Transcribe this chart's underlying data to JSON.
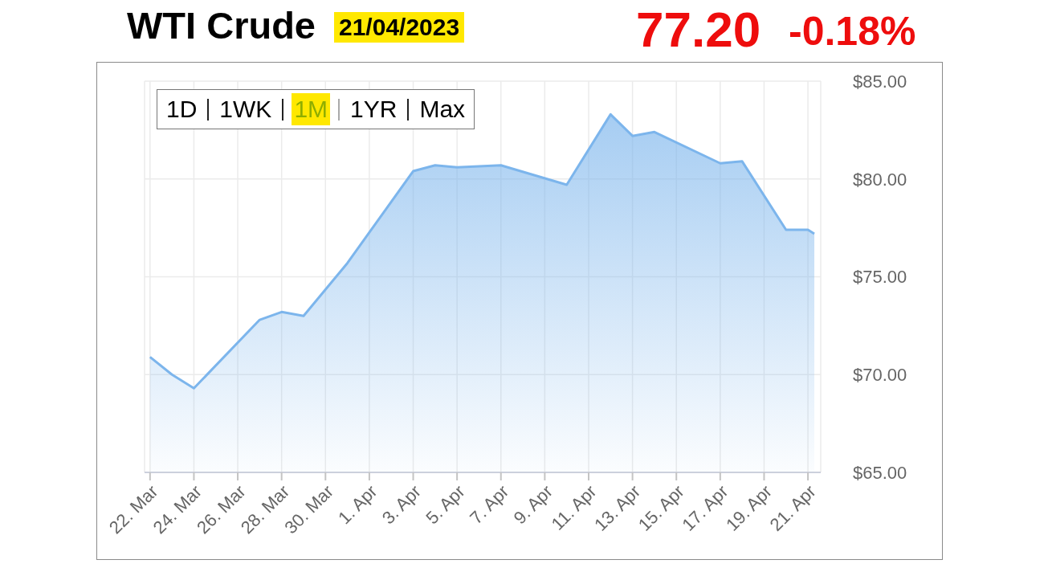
{
  "chart_data": {
    "type": "area",
    "title": "WTI Crude",
    "subtitle": "21/04/2023",
    "annotations": [
      "77.20",
      "-0.18%",
      "1D",
      "1WK",
      "1M",
      "1YR",
      "Max"
    ],
    "x": [
      "2023-03-22",
      "2023-03-23",
      "2023-03-24",
      "2023-03-27",
      "2023-03-28",
      "2023-03-29",
      "2023-03-31",
      "2023-04-03",
      "2023-04-04",
      "2023-04-05",
      "2023-04-07",
      "2023-04-10",
      "2023-04-12",
      "2023-04-13",
      "2023-04-14",
      "2023-04-17",
      "2023-04-18",
      "2023-04-20",
      "2023-04-21",
      "2023-04-21T07:00"
    ],
    "values": [
      70.9,
      70.0,
      69.3,
      72.8,
      73.2,
      73.0,
      75.7,
      80.4,
      80.7,
      80.6,
      80.7,
      79.7,
      83.3,
      82.2,
      82.4,
      80.8,
      80.9,
      77.4,
      77.4,
      77.2
    ],
    "color": "#7cb5ec",
    "xlim": [
      "2023-03-21T18:00",
      "2023-04-21T14:00"
    ],
    "xticks": [
      {
        "value": "2023-03-22",
        "label": "22. Mar"
      },
      {
        "value": "2023-03-24",
        "label": "24. Mar"
      },
      {
        "value": "2023-03-26",
        "label": "26. Mar"
      },
      {
        "value": "2023-03-28",
        "label": "28. Mar"
      },
      {
        "value": "2023-03-30",
        "label": "30. Mar"
      },
      {
        "value": "2023-04-01",
        "label": "1. Apr"
      },
      {
        "value": "2023-04-03",
        "label": "3. Apr"
      },
      {
        "value": "2023-04-05",
        "label": "5. Apr"
      },
      {
        "value": "2023-04-07",
        "label": "7. Apr"
      },
      {
        "value": "2023-04-09",
        "label": "9. Apr"
      },
      {
        "value": "2023-04-11",
        "label": "11. Apr"
      },
      {
        "value": "2023-04-13",
        "label": "13. Apr"
      },
      {
        "value": "2023-04-15",
        "label": "15. Apr"
      },
      {
        "value": "2023-04-17",
        "label": "17. Apr"
      },
      {
        "value": "2023-04-19",
        "label": "19. Apr"
      },
      {
        "value": "2023-04-21",
        "label": "21. Apr"
      }
    ],
    "ylim": [
      65,
      85
    ],
    "yticks": [
      {
        "value": 65,
        "label": "$65.00"
      },
      {
        "value": 70,
        "label": "$70.00"
      },
      {
        "value": 75,
        "label": "$75.00"
      },
      {
        "value": 80,
        "label": "$80.00"
      },
      {
        "value": 85,
        "label": "$85.00"
      }
    ],
    "grid": true
  }
}
